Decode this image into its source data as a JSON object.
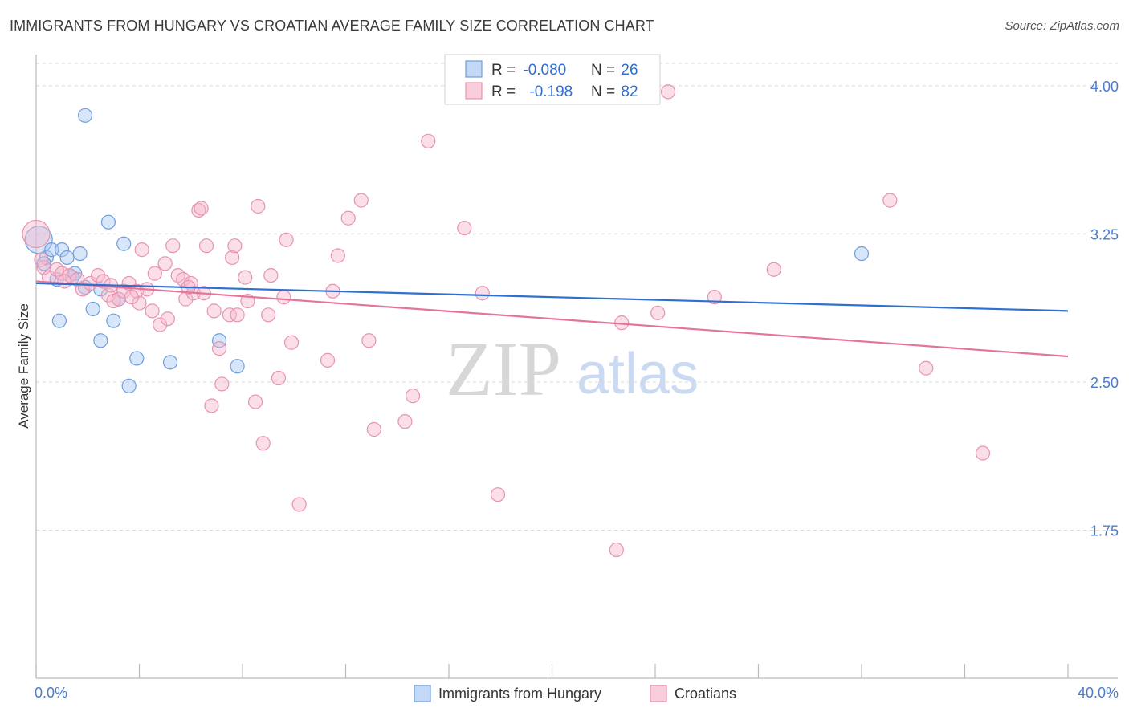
{
  "header": {
    "title": "IMMIGRANTS FROM HUNGARY VS CROATIAN AVERAGE FAMILY SIZE CORRELATION CHART",
    "source": "Source: ZipAtlas.com"
  },
  "watermark": {
    "zip": "ZIP",
    "atlas": "atlas"
  },
  "legend_top": {
    "rows": [
      {
        "r_label": "R = ",
        "r_value": "-0.080",
        "n_label": "N = ",
        "n_value": "26"
      },
      {
        "r_label": "R = ",
        "r_value": "-0.198",
        "n_label": "N = ",
        "n_value": "82"
      }
    ]
  },
  "legend_bottom": {
    "items": [
      "Immigrants from Hungary",
      "Croatians"
    ]
  },
  "colors": {
    "blue_fill": "#a9c7f2",
    "blue_stroke": "#6e9ee0",
    "blue_line": "#2e6fd1",
    "pink_fill": "#f6b9cc",
    "pink_stroke": "#e893b0",
    "pink_line": "#e5749b",
    "axis_text": "#4a7cc9",
    "grid": "#d9d9d9"
  },
  "chart_data": {
    "type": "scatter",
    "title": "IMMIGRANTS FROM HUNGARY VS CROATIAN AVERAGE FAMILY SIZE CORRELATION CHART",
    "xlabel": "",
    "ylabel": "Average Family Size",
    "xlim": [
      0,
      40
    ],
    "ylim": [
      1.0,
      4.15
    ],
    "x_tick_labels": [
      "0.0%",
      "40.0%"
    ],
    "y_ticks": [
      1.75,
      2.5,
      3.25,
      4.0
    ],
    "y_tick_labels": [
      "1.75",
      "2.50",
      "3.25",
      "4.00"
    ],
    "grid": "horizontal dashed",
    "legend_position": "top-center",
    "series": [
      {
        "name": "Immigrants from Hungary",
        "r": -0.08,
        "n": 26,
        "trend": {
          "x": [
            0,
            40
          ],
          "y": [
            3.0,
            2.86
          ]
        },
        "points": [
          [
            0.1,
            3.22
          ],
          [
            0.4,
            3.13
          ],
          [
            0.6,
            3.17
          ],
          [
            0.8,
            3.02
          ],
          [
            1.0,
            3.17
          ],
          [
            1.2,
            3.13
          ],
          [
            1.5,
            3.05
          ],
          [
            1.7,
            3.15
          ],
          [
            0.9,
            2.81
          ],
          [
            1.9,
            2.98
          ],
          [
            2.2,
            2.87
          ],
          [
            2.5,
            2.71
          ],
          [
            2.8,
            3.31
          ],
          [
            3.0,
            2.81
          ],
          [
            3.2,
            2.92
          ],
          [
            3.4,
            3.2
          ],
          [
            3.6,
            2.48
          ],
          [
            3.9,
            2.62
          ],
          [
            5.2,
            2.6
          ],
          [
            7.1,
            2.71
          ],
          [
            7.8,
            2.58
          ],
          [
            1.9,
            3.85
          ],
          [
            32.0,
            3.15
          ],
          [
            2.5,
            2.97
          ],
          [
            0.3,
            3.1
          ],
          [
            1.4,
            3.03
          ]
        ]
      },
      {
        "name": "Croatians",
        "r": -0.198,
        "n": 82,
        "trend": {
          "x": [
            0,
            40
          ],
          "y": [
            3.01,
            2.63
          ]
        },
        "points": [
          [
            0.0,
            3.25
          ],
          [
            0.3,
            3.08
          ],
          [
            0.5,
            3.03
          ],
          [
            0.8,
            3.07
          ],
          [
            1.0,
            3.05
          ],
          [
            1.3,
            3.04
          ],
          [
            1.6,
            3.02
          ],
          [
            1.8,
            2.97
          ],
          [
            2.1,
            3.0
          ],
          [
            2.4,
            3.04
          ],
          [
            2.6,
            3.01
          ],
          [
            2.8,
            2.94
          ],
          [
            3.0,
            2.91
          ],
          [
            3.2,
            2.92
          ],
          [
            3.4,
            2.96
          ],
          [
            3.6,
            3.0
          ],
          [
            3.9,
            2.96
          ],
          [
            4.0,
            2.9
          ],
          [
            4.1,
            3.17
          ],
          [
            4.3,
            2.97
          ],
          [
            4.5,
            2.86
          ],
          [
            4.6,
            3.05
          ],
          [
            4.8,
            2.79
          ],
          [
            5.0,
            3.1
          ],
          [
            5.1,
            2.82
          ],
          [
            5.3,
            3.19
          ],
          [
            5.5,
            3.04
          ],
          [
            5.7,
            3.02
          ],
          [
            5.8,
            2.92
          ],
          [
            6.0,
            3.0
          ],
          [
            6.1,
            2.95
          ],
          [
            6.3,
            3.37
          ],
          [
            6.4,
            3.38
          ],
          [
            6.6,
            3.19
          ],
          [
            6.8,
            2.38
          ],
          [
            6.9,
            2.86
          ],
          [
            7.1,
            2.67
          ],
          [
            7.2,
            2.49
          ],
          [
            7.5,
            2.84
          ],
          [
            7.6,
            3.13
          ],
          [
            7.7,
            3.19
          ],
          [
            7.8,
            2.84
          ],
          [
            8.1,
            3.03
          ],
          [
            8.2,
            2.91
          ],
          [
            8.5,
            2.4
          ],
          [
            8.6,
            3.39
          ],
          [
            8.8,
            2.19
          ],
          [
            9.0,
            2.84
          ],
          [
            9.1,
            3.04
          ],
          [
            9.4,
            2.52
          ],
          [
            9.6,
            2.93
          ],
          [
            9.7,
            3.22
          ],
          [
            9.9,
            2.7
          ],
          [
            10.2,
            1.88
          ],
          [
            11.3,
            2.61
          ],
          [
            11.5,
            2.96
          ],
          [
            11.7,
            3.14
          ],
          [
            12.1,
            3.33
          ],
          [
            12.6,
            3.42
          ],
          [
            12.9,
            2.71
          ],
          [
            13.1,
            2.26
          ],
          [
            14.3,
            2.3
          ],
          [
            14.6,
            2.43
          ],
          [
            15.2,
            3.72
          ],
          [
            16.6,
            3.28
          ],
          [
            17.3,
            2.95
          ],
          [
            17.9,
            1.93
          ],
          [
            22.5,
            1.65
          ],
          [
            22.7,
            2.8
          ],
          [
            24.1,
            2.85
          ],
          [
            24.5,
            3.97
          ],
          [
            26.3,
            2.93
          ],
          [
            28.6,
            3.07
          ],
          [
            33.1,
            3.42
          ],
          [
            34.5,
            2.57
          ],
          [
            36.7,
            2.14
          ],
          [
            2.9,
            2.99
          ],
          [
            3.7,
            2.93
          ],
          [
            1.1,
            3.01
          ],
          [
            0.2,
            3.12
          ],
          [
            5.9,
            2.98
          ],
          [
            6.5,
            2.95
          ]
        ]
      }
    ]
  }
}
